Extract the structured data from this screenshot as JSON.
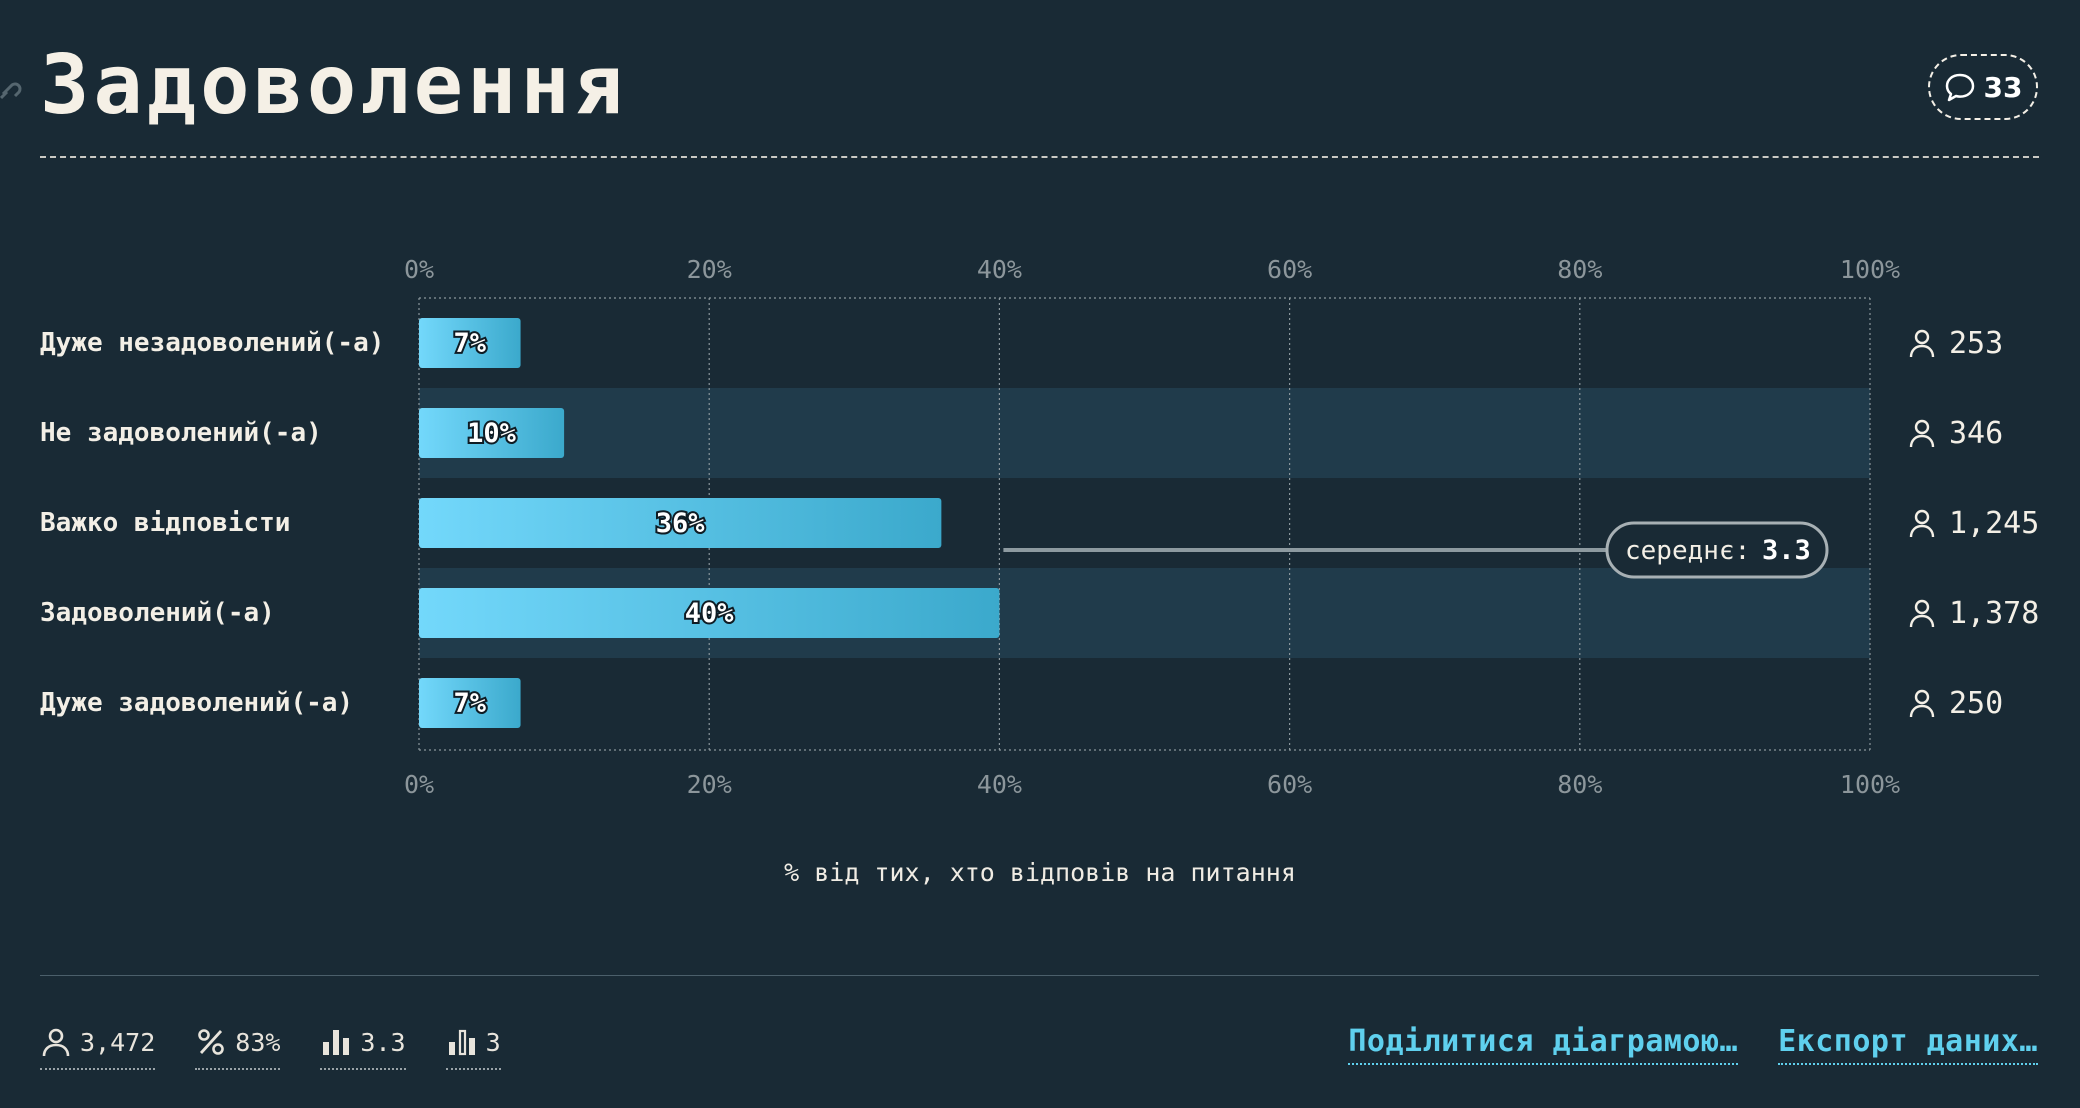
{
  "header": {
    "title": "Задоволення",
    "comment_count": "33"
  },
  "chart_data": {
    "type": "bar",
    "orientation": "horizontal",
    "categories": [
      "Дуже незадоволений(-а)",
      "Не задоволений(-а)",
      "Важко відповісти",
      "Задоволений(-а)",
      "Дуже задоволений(-а)"
    ],
    "values": [
      7,
      10,
      36,
      40,
      7
    ],
    "value_labels": [
      "7%",
      "10%",
      "36%",
      "40%",
      "7%"
    ],
    "counts": [
      "253",
      "346",
      "1,245",
      "1,378",
      "250"
    ],
    "xlim": [
      0,
      100
    ],
    "ticks": [
      "0%",
      "20%",
      "40%",
      "60%",
      "80%",
      "100%"
    ],
    "xlabel": "% від тих, хто відповів на питання",
    "mean_label": "середнє:",
    "mean_value": "3.3",
    "mean_value_num": 3.3,
    "grid": true,
    "colors": {
      "bar_light": "#73d8fb",
      "bar_dark": "#3ba9cc",
      "band": "#203b4b",
      "grid": "#8a969c"
    }
  },
  "footer": {
    "stats": [
      {
        "icon": "person-icon",
        "value": "3,472"
      },
      {
        "icon": "percent-icon",
        "value": "83%"
      },
      {
        "icon": "bar-chart-icon",
        "value": "3.3"
      },
      {
        "icon": "bar-chart-outline-icon",
        "value": "3"
      }
    ],
    "share_label": "Поділитися діаграмою…",
    "export_label": "Експорт даних…"
  }
}
